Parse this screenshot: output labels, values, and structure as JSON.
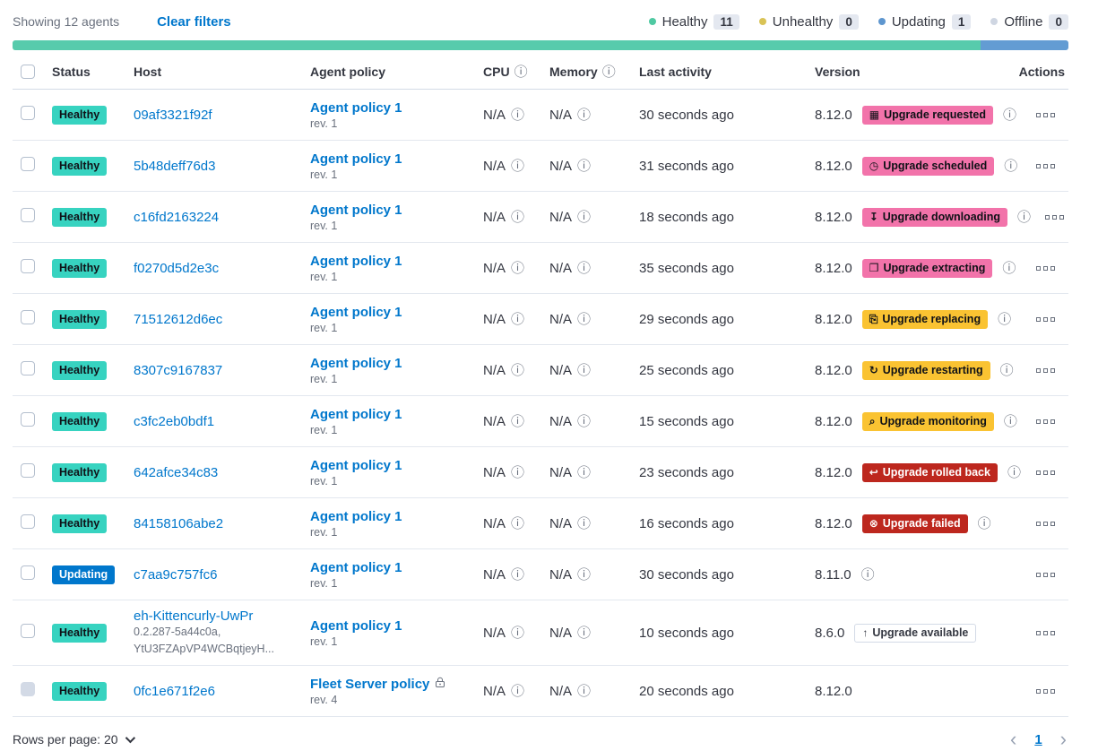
{
  "header": {
    "showing": "Showing 12 agents",
    "clear_filters": "Clear filters",
    "legend": [
      {
        "label": "Healthy",
        "count": "11",
        "color": "#4FC9A2"
      },
      {
        "label": "Unhealthy",
        "count": "0",
        "color": "#D9C356"
      },
      {
        "label": "Updating",
        "count": "1",
        "color": "#5E96CF"
      },
      {
        "label": "Offline",
        "count": "0",
        "color": "#CFD6E2"
      }
    ],
    "health_bar": [
      {
        "status": "healthy",
        "color": "#57CBAC",
        "fraction": 0.917
      },
      {
        "status": "updating",
        "color": "#639CD3",
        "fraction": 0.083
      }
    ]
  },
  "colors": {
    "accent": "#F273AA",
    "warning": "#FAC332",
    "danger": "#BD271E",
    "healthy": "#37D3C0",
    "updating": "#0077CC",
    "link": "#0077CC"
  },
  "table": {
    "headers": {
      "status": "Status",
      "host": "Host",
      "policy": "Agent policy",
      "cpu": "CPU",
      "memory": "Memory",
      "last_activity": "Last activity",
      "version": "Version",
      "actions": "Actions"
    },
    "rows": [
      {
        "checkbox_disabled": false,
        "status": {
          "label": "Healthy",
          "type": "healthy"
        },
        "host": "09af3321f92f",
        "host_sub": [],
        "policy": {
          "name": "Agent policy 1",
          "rev": "rev. 1",
          "locked": false
        },
        "cpu": "N/A",
        "memory": "N/A",
        "last_activity": "30 seconds ago",
        "version": "8.12.0",
        "upgrade": {
          "label": "Upgrade requested",
          "icon": "calendar-icon",
          "style": "accent"
        },
        "version_info": true
      },
      {
        "checkbox_disabled": false,
        "status": {
          "label": "Healthy",
          "type": "healthy"
        },
        "host": "5b48deff76d3",
        "host_sub": [],
        "policy": {
          "name": "Agent policy 1",
          "rev": "rev. 1",
          "locked": false
        },
        "cpu": "N/A",
        "memory": "N/A",
        "last_activity": "31 seconds ago",
        "version": "8.12.0",
        "upgrade": {
          "label": "Upgrade scheduled",
          "icon": "clock-icon",
          "style": "accent"
        },
        "version_info": true
      },
      {
        "checkbox_disabled": false,
        "status": {
          "label": "Healthy",
          "type": "healthy"
        },
        "host": "c16fd2163224",
        "host_sub": [],
        "policy": {
          "name": "Agent policy 1",
          "rev": "rev. 1",
          "locked": false
        },
        "cpu": "N/A",
        "memory": "N/A",
        "last_activity": "18 seconds ago",
        "version": "8.12.0",
        "upgrade": {
          "label": "Upgrade downloading",
          "icon": "download-icon",
          "style": "accent"
        },
        "version_info": true
      },
      {
        "checkbox_disabled": false,
        "status": {
          "label": "Healthy",
          "type": "healthy"
        },
        "host": "f0270d5d2e3c",
        "host_sub": [],
        "policy": {
          "name": "Agent policy 1",
          "rev": "rev. 1",
          "locked": false
        },
        "cpu": "N/A",
        "memory": "N/A",
        "last_activity": "35 seconds ago",
        "version": "8.12.0",
        "upgrade": {
          "label": "Upgrade extracting",
          "icon": "package-icon",
          "style": "accent"
        },
        "version_info": true
      },
      {
        "checkbox_disabled": false,
        "status": {
          "label": "Healthy",
          "type": "healthy"
        },
        "host": "71512612d6ec",
        "host_sub": [],
        "policy": {
          "name": "Agent policy 1",
          "rev": "rev. 1",
          "locked": false
        },
        "cpu": "N/A",
        "memory": "N/A",
        "last_activity": "29 seconds ago",
        "version": "8.12.0",
        "upgrade": {
          "label": "Upgrade replacing",
          "icon": "document-icon",
          "style": "warning"
        },
        "version_info": true
      },
      {
        "checkbox_disabled": false,
        "status": {
          "label": "Healthy",
          "type": "healthy"
        },
        "host": "8307c9167837",
        "host_sub": [],
        "policy": {
          "name": "Agent policy 1",
          "rev": "rev. 1",
          "locked": false
        },
        "cpu": "N/A",
        "memory": "N/A",
        "last_activity": "25 seconds ago",
        "version": "8.12.0",
        "upgrade": {
          "label": "Upgrade restarting",
          "icon": "refresh-icon",
          "style": "warning"
        },
        "version_info": true
      },
      {
        "checkbox_disabled": false,
        "status": {
          "label": "Healthy",
          "type": "healthy"
        },
        "host": "c3fc2eb0bdf1",
        "host_sub": [],
        "policy": {
          "name": "Agent policy 1",
          "rev": "rev. 1",
          "locked": false
        },
        "cpu": "N/A",
        "memory": "N/A",
        "last_activity": "15 seconds ago",
        "version": "8.12.0",
        "upgrade": {
          "label": "Upgrade monitoring",
          "icon": "inspect-icon",
          "style": "warning"
        },
        "version_info": true
      },
      {
        "checkbox_disabled": false,
        "status": {
          "label": "Healthy",
          "type": "healthy"
        },
        "host": "642afce34c83",
        "host_sub": [],
        "policy": {
          "name": "Agent policy 1",
          "rev": "rev. 1",
          "locked": false
        },
        "cpu": "N/A",
        "memory": "N/A",
        "last_activity": "23 seconds ago",
        "version": "8.12.0",
        "upgrade": {
          "label": "Upgrade rolled back",
          "icon": "return-icon",
          "style": "danger"
        },
        "version_info": true
      },
      {
        "checkbox_disabled": false,
        "status": {
          "label": "Healthy",
          "type": "healthy"
        },
        "host": "84158106abe2",
        "host_sub": [],
        "policy": {
          "name": "Agent policy 1",
          "rev": "rev. 1",
          "locked": false
        },
        "cpu": "N/A",
        "memory": "N/A",
        "last_activity": "16 seconds ago",
        "version": "8.12.0",
        "upgrade": {
          "label": "Upgrade failed",
          "icon": "error-icon",
          "style": "danger"
        },
        "version_info": true
      },
      {
        "checkbox_disabled": false,
        "status": {
          "label": "Updating",
          "type": "updating"
        },
        "host": "c7aa9c757fc6",
        "host_sub": [],
        "policy": {
          "name": "Agent policy 1",
          "rev": "rev. 1",
          "locked": false
        },
        "cpu": "N/A",
        "memory": "N/A",
        "last_activity": "30 seconds ago",
        "version": "8.11.0",
        "upgrade": null,
        "version_info": true
      },
      {
        "checkbox_disabled": false,
        "status": {
          "label": "Healthy",
          "type": "healthy"
        },
        "host": "eh-Kittencurly-UwPr",
        "host_sub": [
          "0.2.287-5a44c0a,",
          "YtU3FZApVP4WCBqtjeyH..."
        ],
        "policy": {
          "name": "Agent policy 1",
          "rev": "rev. 1",
          "locked": false
        },
        "cpu": "N/A",
        "memory": "N/A",
        "last_activity": "10 seconds ago",
        "version": "8.6.0",
        "upgrade": {
          "label": "Upgrade available",
          "icon": "arrow-up-icon",
          "style": "hollow"
        },
        "version_info": false
      },
      {
        "checkbox_disabled": true,
        "status": {
          "label": "Healthy",
          "type": "healthy"
        },
        "host": "0fc1e671f2e6",
        "host_sub": [],
        "policy": {
          "name": "Fleet Server policy",
          "rev": "rev. 4",
          "locked": true
        },
        "cpu": "N/A",
        "memory": "N/A",
        "last_activity": "20 seconds ago",
        "version": "8.12.0",
        "upgrade": null,
        "version_info": false
      }
    ]
  },
  "footer": {
    "rows_per_page": "Rows per page: 20",
    "page": "1"
  }
}
